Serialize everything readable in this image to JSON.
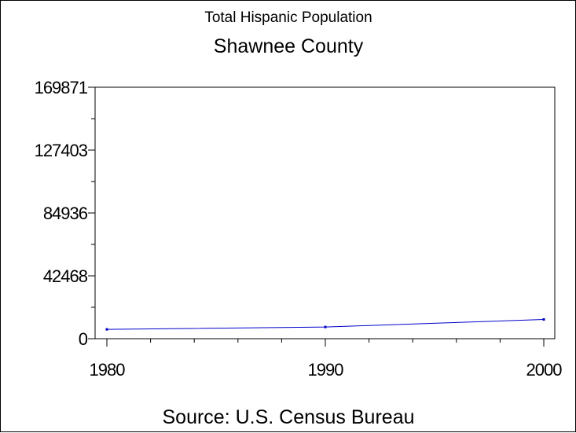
{
  "chart_data": {
    "type": "line",
    "title": "Total Hispanic Population",
    "subtitle": "Shawnee County",
    "footnote": "Source: U.S. Census Bureau",
    "x": [
      1980,
      1990,
      2000
    ],
    "series": [
      {
        "values": [
          6300,
          7900,
          13000
        ]
      }
    ],
    "xticks": [
      "1980",
      "1990",
      "2000"
    ],
    "yticks": [
      "0",
      "42468",
      "84936",
      "127403",
      "169871"
    ],
    "xlim": [
      1980,
      2000
    ],
    "ylim": [
      0,
      169871
    ],
    "grid": false,
    "line_color": "#0000cc"
  }
}
